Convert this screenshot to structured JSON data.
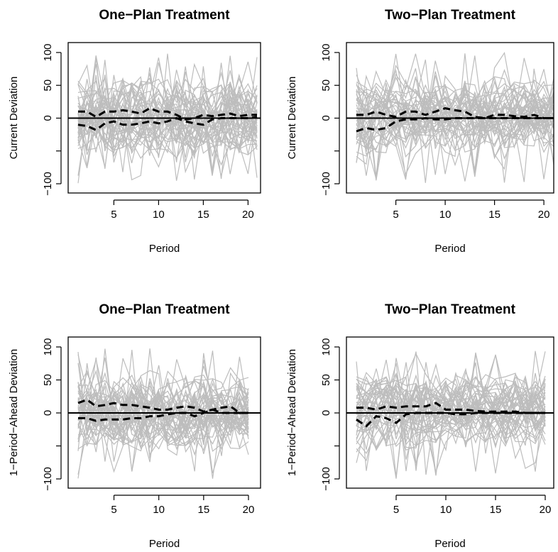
{
  "chart_data": [
    {
      "type": "line",
      "title": "One−Plan Treatment",
      "xlabel": "Period",
      "ylabel": "Current Deviation",
      "xlim": [
        1,
        21
      ],
      "ylim": [
        -100,
        100
      ],
      "xticks": [
        "5",
        "10",
        "15",
        "20"
      ],
      "yticks": [
        "−100",
        "0",
        "50",
        "100"
      ],
      "reference_line": 0,
      "band_series": [
        {
          "name": "",
          "color": "#000000",
          "style": "dashed",
          "x": [
            1,
            2,
            3,
            4,
            5,
            6,
            7,
            8,
            9,
            10,
            11,
            12,
            13,
            14,
            15,
            16,
            17,
            18,
            19,
            20,
            21
          ],
          "y": [
            10,
            10,
            2,
            10,
            10,
            12,
            10,
            7,
            15,
            10,
            10,
            5,
            -2,
            0,
            5,
            3,
            5,
            7,
            3,
            5,
            5
          ]
        },
        {
          "name": "",
          "color": "#000000",
          "style": "dashed",
          "x": [
            1,
            2,
            3,
            4,
            5,
            6,
            7,
            8,
            9,
            10,
            11,
            12,
            13,
            14,
            15,
            16,
            17,
            18,
            19,
            20,
            21
          ],
          "y": [
            -10,
            -12,
            -18,
            -8,
            -5,
            -10,
            -10,
            -8,
            -5,
            -8,
            -5,
            0,
            -5,
            -8,
            -10,
            -2,
            0,
            0,
            0,
            0,
            2
          ]
        }
      ]
    },
    {
      "type": "line",
      "title": "Two−Plan Treatment",
      "xlabel": "Period",
      "ylabel": "Current Deviation",
      "xlim": [
        1,
        21
      ],
      "ylim": [
        -100,
        100
      ],
      "xticks": [
        "5",
        "10",
        "15",
        "20"
      ],
      "yticks": [
        "−100",
        "0",
        "50",
        "100"
      ],
      "reference_line": 0,
      "band_series": [
        {
          "name": "",
          "color": "#000000",
          "style": "dashed",
          "x": [
            1,
            2,
            3,
            4,
            5,
            6,
            7,
            8,
            9,
            10,
            11,
            12,
            13,
            14,
            15,
            16,
            17,
            18,
            19,
            20,
            21
          ],
          "y": [
            5,
            5,
            10,
            5,
            2,
            10,
            10,
            5,
            10,
            15,
            12,
            10,
            2,
            0,
            5,
            5,
            3,
            2,
            5,
            0,
            0
          ]
        },
        {
          "name": "",
          "color": "#000000",
          "style": "dashed",
          "x": [
            1,
            2,
            3,
            4,
            5,
            6,
            7,
            8,
            9,
            10,
            11,
            12,
            13,
            14,
            15,
            16,
            17,
            18,
            19,
            20,
            21
          ],
          "y": [
            -20,
            -15,
            -18,
            -15,
            -5,
            -2,
            -2,
            0,
            -2,
            -2,
            0,
            0,
            0,
            0,
            0,
            0,
            0,
            0,
            0,
            0,
            0
          ]
        }
      ]
    },
    {
      "type": "line",
      "title": "One−Plan Treatment",
      "xlabel": "Period",
      "ylabel": "1−Period−Ahead Deviation",
      "xlim": [
        1,
        20
      ],
      "ylim": [
        -100,
        100
      ],
      "xticks": [
        "5",
        "10",
        "15",
        "20"
      ],
      "yticks": [
        "−100",
        "0",
        "50",
        "100"
      ],
      "reference_line": 0,
      "band_series": [
        {
          "name": "",
          "color": "#000000",
          "style": "dashed",
          "x": [
            1,
            2,
            3,
            4,
            5,
            6,
            7,
            8,
            9,
            10,
            11,
            12,
            13,
            14,
            15,
            16,
            17,
            18,
            19,
            20
          ],
          "y": [
            15,
            20,
            10,
            12,
            15,
            12,
            12,
            10,
            8,
            5,
            5,
            8,
            10,
            8,
            2,
            5,
            8,
            10,
            0,
            0
          ]
        },
        {
          "name": "",
          "color": "#000000",
          "style": "dashed",
          "x": [
            1,
            2,
            3,
            4,
            5,
            6,
            7,
            8,
            9,
            10,
            11,
            12,
            13,
            14,
            15,
            16,
            17,
            18,
            19,
            20
          ],
          "y": [
            -8,
            -8,
            -12,
            -10,
            -10,
            -10,
            -8,
            -8,
            -5,
            -5,
            -2,
            0,
            0,
            -5,
            0,
            5,
            0,
            0,
            0,
            0
          ]
        }
      ]
    },
    {
      "type": "line",
      "title": "Two−Plan Treatment",
      "xlabel": "Period",
      "ylabel": "1−Period−Ahead Deviation",
      "xlim": [
        1,
        20
      ],
      "ylim": [
        -100,
        100
      ],
      "xticks": [
        "5",
        "10",
        "15",
        "20"
      ],
      "yticks": [
        "−100",
        "0",
        "50",
        "100"
      ],
      "reference_line": 0,
      "band_series": [
        {
          "name": "",
          "color": "#000000",
          "style": "dashed",
          "x": [
            1,
            2,
            3,
            4,
            5,
            6,
            7,
            8,
            9,
            10,
            11,
            12,
            13,
            14,
            15,
            16,
            17,
            18,
            19,
            20
          ],
          "y": [
            8,
            8,
            5,
            10,
            8,
            10,
            10,
            10,
            15,
            5,
            5,
            5,
            3,
            2,
            2,
            2,
            2,
            0,
            0,
            0
          ]
        },
        {
          "name": "",
          "color": "#000000",
          "style": "dashed",
          "x": [
            1,
            2,
            3,
            4,
            5,
            6,
            7,
            8,
            9,
            10,
            11,
            12,
            13,
            14,
            15,
            16,
            17,
            18,
            19,
            20
          ],
          "y": [
            -10,
            -20,
            -5,
            -8,
            -15,
            -2,
            0,
            0,
            0,
            0,
            -2,
            -2,
            0,
            0,
            0,
            0,
            0,
            0,
            0,
            0
          ]
        }
      ]
    }
  ],
  "colors": {
    "individual_lines": "#bdbdbd",
    "band_lines": "#000000",
    "zero_line": "#000000",
    "frame": "#000000"
  }
}
